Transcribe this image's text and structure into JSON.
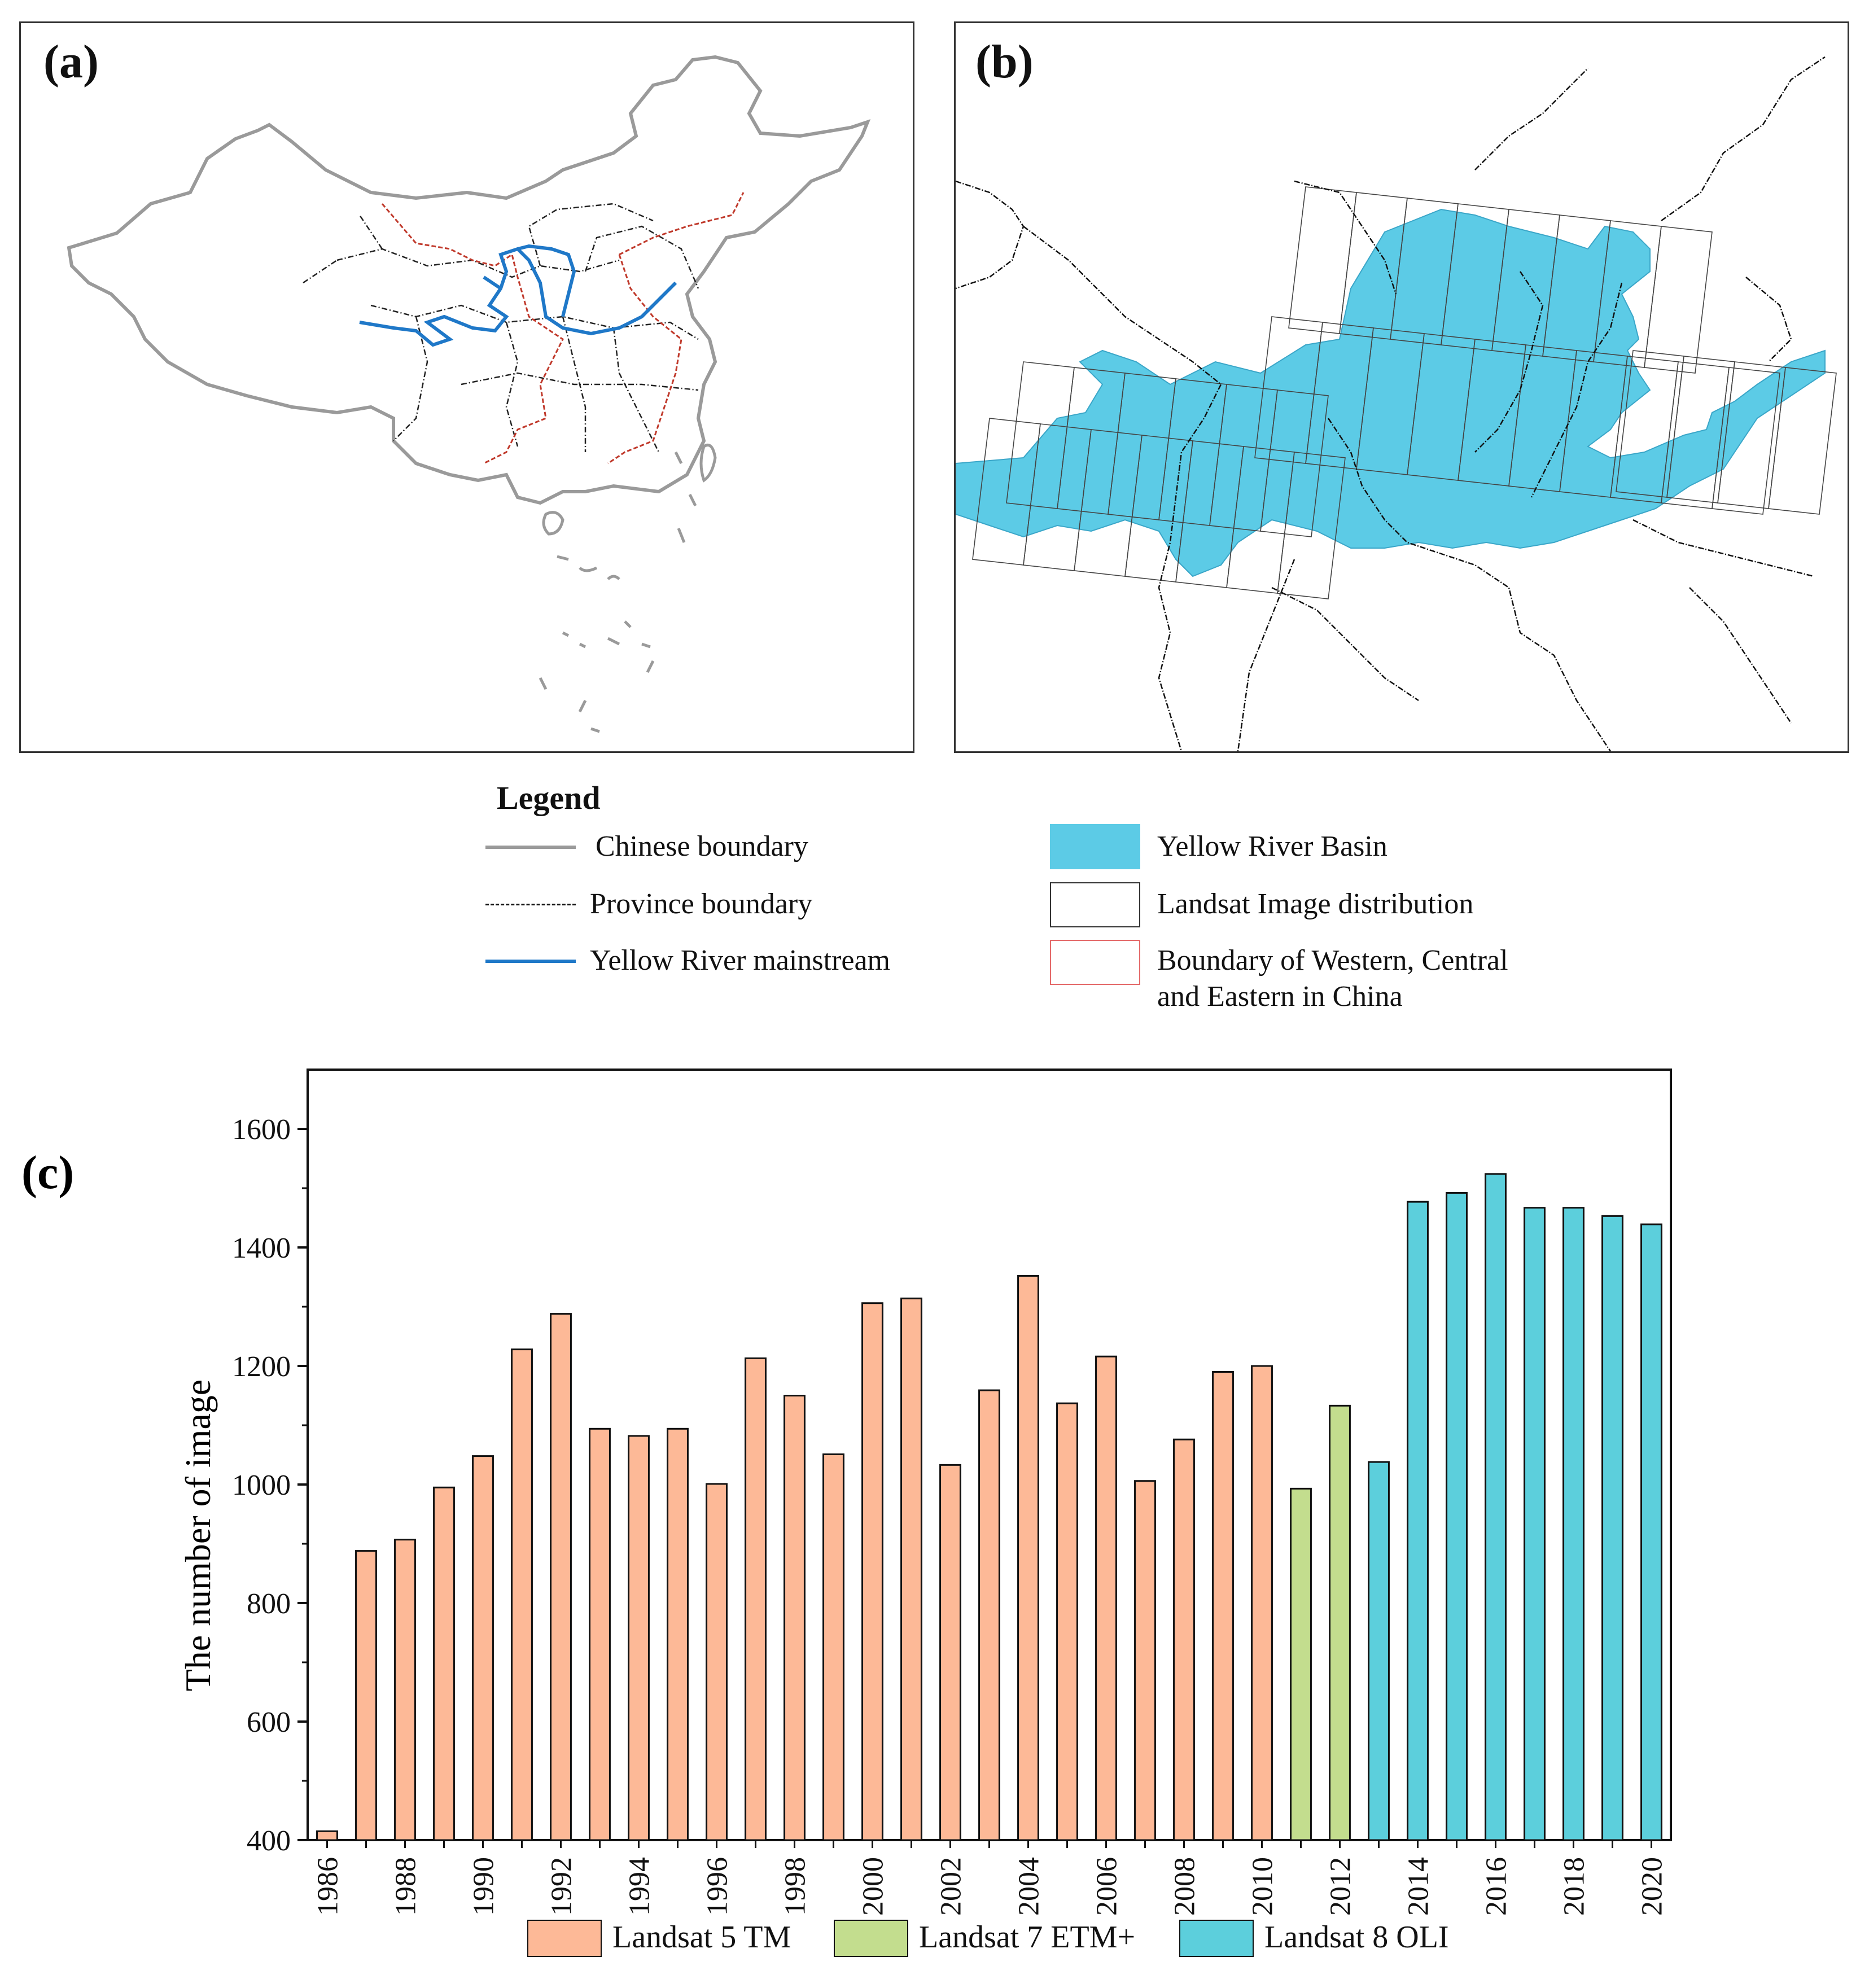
{
  "panels": {
    "a_label": "(a)",
    "b_label": "(b)",
    "c_label": "(c)"
  },
  "legend": {
    "title": "Legend",
    "items": [
      {
        "label": "Chinese boundary",
        "color": "#9a9a9a"
      },
      {
        "label": "Province boundary",
        "color": "#111111"
      },
      {
        "label": "Yellow River mainstream",
        "color": "#1f78c8"
      },
      {
        "label": "Yellow River Basin",
        "color": "#5ccbe6"
      },
      {
        "label": "Landsat Image distribution",
        "color": "#333333"
      },
      {
        "label": "Boundary of Western, Central",
        "label2": "and Eastern in China",
        "color": "#e46a6a"
      }
    ]
  },
  "chart_data": {
    "type": "bar",
    "title": "",
    "xlabel": "",
    "ylabel": "The number of image",
    "ylim": [
      400,
      1700
    ],
    "yticks": [
      400,
      600,
      800,
      1000,
      1200,
      1400,
      1600
    ],
    "x": [
      1986,
      1987,
      1988,
      1989,
      1990,
      1991,
      1992,
      1993,
      1994,
      1995,
      1996,
      1997,
      1998,
      1999,
      2000,
      2001,
      2002,
      2003,
      2004,
      2005,
      2006,
      2007,
      2008,
      2009,
      2010,
      2011,
      2012,
      2013,
      2014,
      2015,
      2016,
      2017,
      2018,
      2019,
      2020
    ],
    "xtick_labels": [
      "1986",
      "1988",
      "1990",
      "1992",
      "1994",
      "1996",
      "1998",
      "2000",
      "2002",
      "2004",
      "2006",
      "2008",
      "2010",
      "2012",
      "2014",
      "2016",
      "2018",
      "2020"
    ],
    "values": [
      415,
      888,
      907,
      995,
      1048,
      1228,
      1288,
      1094,
      1082,
      1094,
      1001,
      1213,
      1150,
      1051,
      1306,
      1314,
      1033,
      1159,
      1352,
      1137,
      1216,
      1006,
      1076,
      1190,
      1200,
      993,
      1133,
      1038,
      1477,
      1492,
      1524,
      1467,
      1467,
      1453,
      1439
    ],
    "sensor": [
      "L5",
      "L5",
      "L5",
      "L5",
      "L5",
      "L5",
      "L5",
      "L5",
      "L5",
      "L5",
      "L5",
      "L5",
      "L5",
      "L5",
      "L5",
      "L5",
      "L5",
      "L5",
      "L5",
      "L5",
      "L5",
      "L5",
      "L5",
      "L5",
      "L5",
      "L7",
      "L7",
      "L8",
      "L8",
      "L8",
      "L8",
      "L8",
      "L8",
      "L8",
      "L8"
    ],
    "series": [
      {
        "key": "L5",
        "name": "Landsat 5 TM",
        "color": "#fdb997"
      },
      {
        "key": "L7",
        "name": "Landsat 7 ETM+",
        "color": "#c3dd8e"
      },
      {
        "key": "L8",
        "name": "Landsat 8 OLI",
        "color": "#5ccfdc"
      }
    ],
    "legend_position": "bottom"
  }
}
